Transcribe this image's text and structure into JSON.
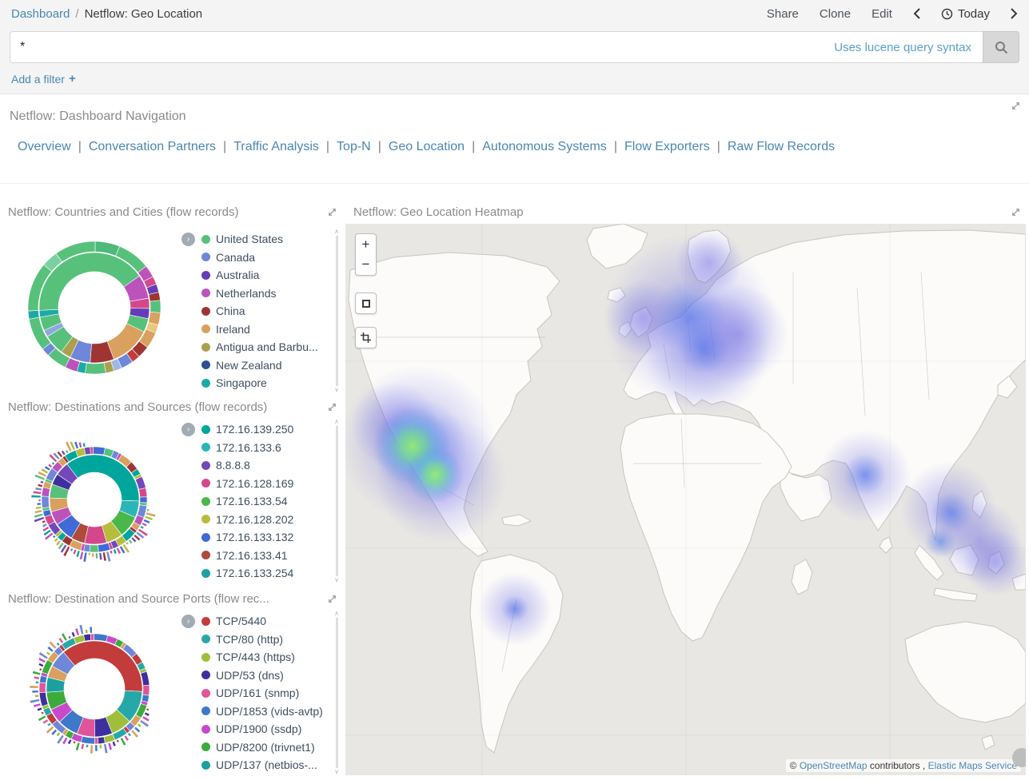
{
  "breadcrumb": {
    "dashboard": "Dashboard",
    "separator": "/",
    "current": "Netflow: Geo Location"
  },
  "actions": {
    "share": "Share",
    "clone": "Clone",
    "edit": "Edit",
    "today": "Today"
  },
  "query": {
    "value": "*",
    "hint": "Uses lucene query syntax"
  },
  "filter": {
    "label": "Add a filter",
    "plus": "+"
  },
  "icons": {
    "legend_toggle": "›",
    "scroll_up": "∧",
    "scroll_down": "∨"
  },
  "nav": {
    "title": "Netflow: Dashboard Navigation",
    "separator": "|",
    "links": [
      "Overview",
      "Conversation Partners",
      "Traffic Analysis",
      "Top-N",
      "Geo Location",
      "Autonomous Systems",
      "Flow Exporters",
      "Raw Flow Records"
    ]
  },
  "panels": {
    "countries": {
      "title": "Netflow: Countries and Cities (flow records)",
      "legend": [
        {
          "label": "United States",
          "color": "#57c17b"
        },
        {
          "label": "Canada",
          "color": "#6f87d8"
        },
        {
          "label": "Australia",
          "color": "#663db8"
        },
        {
          "label": "Netherlands",
          "color": "#bc52bc"
        },
        {
          "label": "China",
          "color": "#9e3533"
        },
        {
          "label": "Ireland",
          "color": "#daa05d"
        },
        {
          "label": "Antigua and Barbu...",
          "color": "#aca04f"
        },
        {
          "label": "New Zealand",
          "color": "#2c5093"
        },
        {
          "label": "Singapore",
          "color": "#1ba9a9"
        }
      ]
    },
    "destinations": {
      "title": "Netflow: Destinations and Sources (flow records)",
      "legend": [
        {
          "label": "172.16.139.250",
          "color": "#00a69b"
        },
        {
          "label": "172.16.133.6",
          "color": "#2bb5b8"
        },
        {
          "label": "8.8.8.8",
          "color": "#7447bb"
        },
        {
          "label": "172.16.128.169",
          "color": "#d4488b"
        },
        {
          "label": "172.16.133.54",
          "color": "#49b749"
        },
        {
          "label": "172.16.128.202",
          "color": "#b6bd3c"
        },
        {
          "label": "172.16.133.132",
          "color": "#3f6ad8"
        },
        {
          "label": "172.16.133.41",
          "color": "#b04a3a"
        },
        {
          "label": "172.16.133.254",
          "color": "#1ba0a0"
        }
      ]
    },
    "ports": {
      "title": "Netflow: Destination and Source Ports (flow rec...",
      "legend": [
        {
          "label": "TCP/5440",
          "color": "#c23c3c"
        },
        {
          "label": "TCP/80 (http)",
          "color": "#27a8a8"
        },
        {
          "label": "TCP/443 (https)",
          "color": "#9fbf3b"
        },
        {
          "label": "UDP/53 (dns)",
          "color": "#3f2f9e"
        },
        {
          "label": "UDP/161 (snmp)",
          "color": "#e0559a"
        },
        {
          "label": "UDP/1853 (vids-avtp)",
          "color": "#3e78c9"
        },
        {
          "label": "UDP/1900 (ssdp)",
          "color": "#c94ac9"
        },
        {
          "label": "UDP/8200 (trivnet1)",
          "color": "#3cab3c"
        },
        {
          "label": "UDP/137 (netbios-...",
          "color": "#1ba0a0"
        }
      ]
    },
    "heatmap": {
      "title": "Netflow: Geo Location Heatmap"
    }
  },
  "map": {
    "zoom_in": "+",
    "zoom_out": "−",
    "copyright": "©",
    "osm_link": "OpenStreetMap",
    "contributors_text": "contributors ,",
    "elastic_link": "Elastic Maps Service"
  },
  "chart_data": [
    {
      "id": "countries",
      "type": "pie",
      "title": "Netflow: Countries and Cities (flow records)",
      "rings": [
        {
          "r0": 45,
          "r1": 69,
          "start": -100,
          "segments": [
            {
              "color": "#1ba9a9",
              "v": 2
            },
            {
              "color": "#57c17b",
              "v": 41
            },
            {
              "color": "#bc52bc",
              "v": 7
            },
            {
              "color": "#d4488b",
              "v": 3
            },
            {
              "color": "#663db8",
              "v": 3
            },
            {
              "color": "#57c17b",
              "v": 4
            },
            {
              "color": "#daa05d",
              "v": 12
            },
            {
              "color": "#9e3533",
              "v": 7
            },
            {
              "color": "#6f87d8",
              "v": 6
            },
            {
              "color": "#aca04f",
              "v": 3
            },
            {
              "color": "#57c17b",
              "v": 6
            },
            {
              "color": "#8fa7de",
              "v": 2
            },
            {
              "color": "#57c17b",
              "v": 4
            }
          ]
        },
        {
          "r0": 70,
          "r1": 83,
          "start": -100,
          "segments": [
            {
              "color": "#1ba9a9",
              "v": 2
            },
            {
              "color": "#57c17b",
              "v": 12
            },
            {
              "color": "#7bd0a0",
              "v": 4
            },
            {
              "color": "#57c17b",
              "v": 10
            },
            {
              "color": "#4fb87b",
              "v": 6
            },
            {
              "color": "#57c17b",
              "v": 8
            },
            {
              "color": "#bc52bc",
              "v": 3
            },
            {
              "color": "#d4488b",
              "v": 2
            },
            {
              "color": "#663db8",
              "v": 2
            },
            {
              "color": "#9e3533",
              "v": 2
            },
            {
              "color": "#57c17b",
              "v": 3
            },
            {
              "color": "#daa05d",
              "v": 3
            },
            {
              "color": "#e8c87a",
              "v": 2
            },
            {
              "color": "#daa05d",
              "v": 4
            },
            {
              "color": "#9e3533",
              "v": 3
            },
            {
              "color": "#c23c3c",
              "v": 2
            },
            {
              "color": "#6f87d8",
              "v": 3
            },
            {
              "color": "#9db8e8",
              "v": 2
            },
            {
              "color": "#aca04f",
              "v": 2
            },
            {
              "color": "#57c17b",
              "v": 5
            },
            {
              "color": "#1ba9a9",
              "v": 2
            },
            {
              "color": "#bc52bc",
              "v": 3
            },
            {
              "color": "#57c17b",
              "v": 5
            },
            {
              "color": "#6f87d8",
              "v": 2
            },
            {
              "color": "#57c17b",
              "v": 8
            }
          ]
        }
      ]
    },
    {
      "id": "destinations",
      "type": "pie",
      "title": "Netflow: Destinations and Sources (flow records)",
      "rings": [
        {
          "r0": 34,
          "r1": 56,
          "start": -70,
          "segments": [
            {
              "color": "#3f2f9e",
              "v": 4
            },
            {
              "color": "#7447bb",
              "v": 5
            },
            {
              "color": "#00a69b",
              "v": 36
            },
            {
              "color": "#2bb5b8",
              "v": 6
            },
            {
              "color": "#49b749",
              "v": 8
            },
            {
              "color": "#b6bd3c",
              "v": 6
            },
            {
              "color": "#d4488b",
              "v": 8
            },
            {
              "color": "#b04a3a",
              "v": 5
            },
            {
              "color": "#3f6ad8",
              "v": 7
            },
            {
              "color": "#bc52bc",
              "v": 5
            },
            {
              "color": "#daa05d",
              "v": 5
            },
            {
              "color": "#57c17b",
              "v": 5
            }
          ]
        },
        {
          "r0": 57,
          "r1": 66,
          "start": -70,
          "pattern": {
            "count": 44,
            "palette": [
              "#57c17b",
              "#6f87d8",
              "#bc52bc",
              "#daa05d",
              "#9e3533",
              "#00a69b",
              "#b6bd3c",
              "#7447bb",
              "#d4488b",
              "#3f6ad8"
            ]
          }
        }
      ],
      "ticks": {
        "r0": 67,
        "count": 66,
        "a0": 100,
        "a1": 352,
        "lmin": 3,
        "lmax": 13,
        "palette": [
          "#57c17b",
          "#6f87d8",
          "#bc52bc",
          "#daa05d",
          "#9e3533",
          "#00a69b",
          "#b6bd3c",
          "#7447bb",
          "#d4488b",
          "#3f6ad8"
        ]
      }
    },
    {
      "id": "ports",
      "type": "pie",
      "title": "Netflow: Destination and Source Ports (flow records)",
      "rings": [
        {
          "r0": 38,
          "r1": 60,
          "start": -40,
          "segments": [
            {
              "color": "#c23c3c",
              "v": 37
            },
            {
              "color": "#27a8a8",
              "v": 11
            },
            {
              "color": "#9fbf3b",
              "v": 7
            },
            {
              "color": "#3f2f9e",
              "v": 6
            },
            {
              "color": "#e0559a",
              "v": 6
            },
            {
              "color": "#3e78c9",
              "v": 7
            },
            {
              "color": "#c94ac9",
              "v": 5
            },
            {
              "color": "#3cab3c",
              "v": 6
            },
            {
              "color": "#1ba0a0",
              "v": 5
            },
            {
              "color": "#daa05d",
              "v": 4
            },
            {
              "color": "#6f87d8",
              "v": 6
            }
          ]
        },
        {
          "r0": 61,
          "r1": 69,
          "start": -40,
          "pattern": {
            "count": 40,
            "palette": [
              "#c23c3c",
              "#27a8a8",
              "#9fbf3b",
              "#3f2f9e",
              "#e0559a",
              "#3e78c9",
              "#c94ac9",
              "#3cab3c",
              "#daa05d",
              "#6f87d8"
            ]
          }
        }
      ],
      "ticks": {
        "r0": 70,
        "count": 56,
        "a0": 110,
        "a1": 360,
        "lmin": 3,
        "lmax": 12,
        "palette": [
          "#c23c3c",
          "#27a8a8",
          "#9fbf3b",
          "#3f2f9e",
          "#e0559a",
          "#3e78c9",
          "#c94ac9",
          "#3cab3c",
          "#daa05d",
          "#6f87d8"
        ]
      }
    },
    {
      "id": "geo-heatmap",
      "type": "heatmap",
      "title": "Netflow: Geo Location Heatmap",
      "hotspots": [
        {
          "region": "Eastern United States",
          "intensity": "high"
        },
        {
          "region": "Western and Central Europe",
          "intensity": "medium-high"
        },
        {
          "region": "Scandinavia",
          "intensity": "low"
        },
        {
          "region": "India",
          "intensity": "medium"
        },
        {
          "region": "Southeast Asia",
          "intensity": "medium"
        },
        {
          "region": "Southern Brazil",
          "intensity": "low"
        }
      ]
    }
  ]
}
